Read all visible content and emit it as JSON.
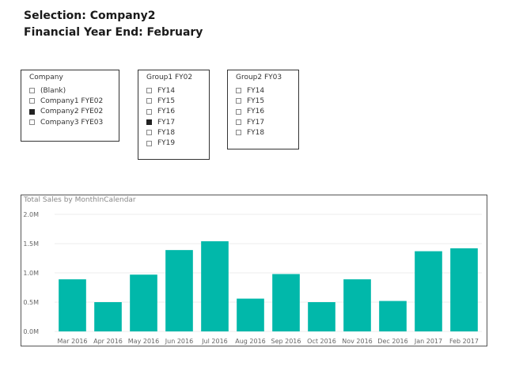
{
  "header": {
    "selection_line": "Selection: Company2",
    "fye_line": "Financial Year End:  February"
  },
  "slicers": [
    {
      "title": "Company",
      "items": [
        {
          "label": "(Blank)",
          "checked": false
        },
        {
          "label": "Company1 FYE02",
          "checked": false
        },
        {
          "label": "Company2 FYE02",
          "checked": true
        },
        {
          "label": "Company3 FYE03",
          "checked": false
        }
      ]
    },
    {
      "title": "Group1 FY02",
      "items": [
        {
          "label": "FY14",
          "checked": false
        },
        {
          "label": "FY15",
          "checked": false
        },
        {
          "label": "FY16",
          "checked": false
        },
        {
          "label": "FY17",
          "checked": true
        },
        {
          "label": "FY18",
          "checked": false
        },
        {
          "label": "FY19",
          "checked": false
        }
      ]
    },
    {
      "title": "Group2 FY03",
      "items": [
        {
          "label": "FY14",
          "checked": false
        },
        {
          "label": "FY15",
          "checked": false
        },
        {
          "label": "FY16",
          "checked": false
        },
        {
          "label": "FY17",
          "checked": false
        },
        {
          "label": "FY18",
          "checked": false
        }
      ]
    }
  ],
  "colors": {
    "bar": "#01B8AA",
    "checked_box": "#222222"
  },
  "chart_data": {
    "type": "bar",
    "title": "Total Sales by MonthInCalendar",
    "categories": [
      "Mar 2016",
      "Apr 2016",
      "May 2016",
      "Jun 2016",
      "Jul 2016",
      "Aug 2016",
      "Sep 2016",
      "Oct 2016",
      "Nov 2016",
      "Dec 2016",
      "Jan 2017",
      "Feb 2017"
    ],
    "values": [
      890000,
      500000,
      970000,
      1390000,
      1540000,
      560000,
      980000,
      500000,
      890000,
      520000,
      1370000,
      1420000
    ],
    "y_ticks": [
      {
        "value": 0,
        "label": "0.0M"
      },
      {
        "value": 500000,
        "label": "0.5M"
      },
      {
        "value": 1000000,
        "label": "1.0M"
      },
      {
        "value": 1500000,
        "label": "1.5M"
      },
      {
        "value": 2000000,
        "label": "2.0M"
      }
    ],
    "ylim": [
      0,
      2000000
    ],
    "xlabel": "",
    "ylabel": "",
    "grid": true
  }
}
